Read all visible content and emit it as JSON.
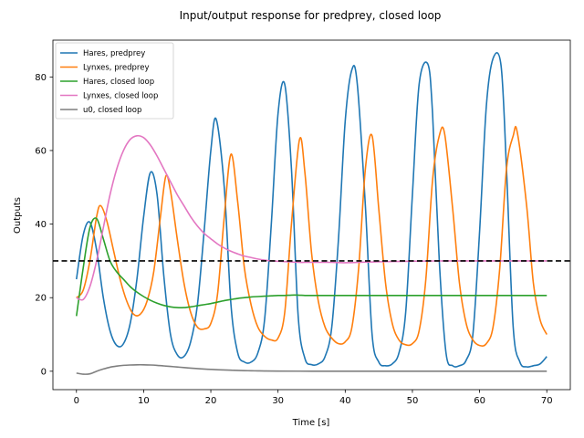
{
  "chart_data": {
    "type": "line",
    "title": "Input/output response for predprey, closed loop",
    "xlabel": "Time [s]",
    "ylabel": "Outputs",
    "xlim": [
      -3.5,
      73.5
    ],
    "ylim": [
      -5,
      90
    ],
    "xticks": [
      0,
      10,
      20,
      30,
      40,
      50,
      60,
      70
    ],
    "yticks": [
      0,
      20,
      40,
      60,
      80
    ],
    "grid": false,
    "legend_position": "top-left",
    "reference_line": {
      "y": 30,
      "color": "#000000",
      "style": "dashed"
    },
    "series": [
      {
        "name": "Hares, predprey",
        "color": "#1f77b4",
        "x": [
          0,
          1,
          2,
          3,
          4,
          5,
          6,
          7,
          8,
          9,
          10,
          11,
          12,
          13,
          14,
          15,
          16,
          17,
          18,
          19,
          20,
          20.8,
          22,
          23,
          24,
          25,
          26,
          27,
          28,
          29,
          30,
          31,
          32,
          33,
          34,
          35,
          36,
          37,
          38,
          39,
          40,
          41,
          41.8,
          43,
          44,
          45,
          46,
          47,
          48,
          49,
          50,
          51,
          52.3,
          53,
          54,
          55,
          56,
          57,
          58,
          59,
          60,
          61,
          62,
          63.2,
          64,
          65,
          66,
          67,
          68,
          69,
          70
        ],
        "y": [
          25,
          37,
          40.5,
          33,
          20,
          11,
          7,
          7.5,
          13,
          25,
          42,
          54,
          48,
          26,
          10,
          4.5,
          4,
          8,
          18,
          38,
          60,
          68.5,
          50,
          18,
          5,
          2.5,
          2.5,
          5,
          14,
          40,
          70,
          78,
          55,
          15,
          3.5,
          1.8,
          2,
          4,
          12,
          36,
          68,
          82,
          78,
          45,
          10,
          2.5,
          1.5,
          2,
          5,
          16,
          48,
          78,
          83.5,
          70,
          30,
          5,
          1.5,
          1.5,
          3,
          10,
          38,
          72,
          85,
          83,
          55,
          12,
          2.5,
          1.2,
          1.5,
          2,
          4
        ]
      },
      {
        "name": "Lynxes, predprey",
        "color": "#ff7f0e",
        "x": [
          0,
          1,
          2,
          3,
          3.6,
          4.5,
          5.5,
          6.5,
          7.5,
          8.5,
          9.5,
          10.5,
          11.5,
          12.5,
          13.3,
          14,
          15,
          16,
          17,
          18,
          19,
          20,
          21,
          22,
          23,
          24,
          25,
          26,
          27,
          28,
          29,
          30,
          31,
          32,
          33.2,
          34,
          35,
          36,
          37,
          38,
          39,
          40,
          41,
          42,
          43,
          44,
          45,
          46,
          47,
          48,
          49,
          50,
          51,
          52,
          53,
          54,
          54.8,
          56,
          57,
          58,
          59,
          60,
          61,
          62,
          63,
          64,
          65,
          65.6,
          67,
          68,
          69,
          70
        ],
        "y": [
          20,
          22,
          30,
          42,
          45,
          41,
          33,
          25,
          19,
          15.5,
          15.5,
          19,
          27,
          42,
          53,
          49,
          36,
          24,
          16,
          12,
          11.5,
          13,
          21,
          42,
          59,
          46,
          28,
          18,
          12,
          9.5,
          8.5,
          9,
          16,
          40,
          63,
          54,
          32,
          19,
          12,
          9,
          7.5,
          8,
          12,
          28,
          55,
          64,
          44,
          24,
          13,
          8.5,
          7.2,
          7.5,
          11,
          25,
          52,
          64,
          64.5,
          44,
          24,
          13,
          8.5,
          7,
          7.5,
          12,
          28,
          55,
          64,
          65,
          45,
          24,
          14,
          10
        ]
      },
      {
        "name": "Hares, closed loop",
        "color": "#2ca02c",
        "x": [
          0,
          1,
          2,
          3,
          4,
          5,
          6,
          7,
          8,
          9,
          10,
          11,
          12,
          13,
          14,
          15,
          16,
          17,
          18,
          19,
          20,
          21,
          22,
          23,
          24,
          25,
          26,
          27,
          28,
          29,
          30,
          31,
          32,
          33,
          34,
          35,
          40,
          45,
          50,
          55,
          60,
          65,
          70
        ],
        "y": [
          15,
          28,
          39,
          41.5,
          36,
          30,
          27,
          25,
          23,
          21.5,
          20.3,
          19.3,
          18.5,
          17.9,
          17.5,
          17.3,
          17.3,
          17.5,
          17.8,
          18.1,
          18.4,
          18.8,
          19.2,
          19.5,
          19.8,
          20,
          20.2,
          20.3,
          20.4,
          20.5,
          20.6,
          20.6,
          20.7,
          20.7,
          20.6,
          20.6,
          20.6,
          20.6,
          20.6,
          20.6,
          20.6,
          20.6,
          20.6
        ]
      },
      {
        "name": "Lynxes, closed loop",
        "color": "#e377c2",
        "x": [
          0,
          1,
          2,
          3,
          4,
          5,
          6,
          7,
          8,
          9,
          10,
          11,
          12,
          13,
          14,
          15,
          16,
          17,
          18,
          19,
          20,
          21,
          22,
          23,
          24,
          25,
          26,
          27,
          28,
          29,
          30,
          31,
          32,
          33,
          34,
          35,
          36,
          38,
          40,
          42,
          44,
          46,
          50,
          55,
          60,
          65,
          70
        ],
        "y": [
          20,
          19.5,
          23,
          30,
          39,
          48,
          55,
          60,
          63,
          64,
          63.5,
          61.5,
          58.5,
          55,
          51.5,
          48,
          45,
          42,
          39.5,
          37.5,
          36,
          34.6,
          33.5,
          32.6,
          31.9,
          31.3,
          30.9,
          30.5,
          30.2,
          30,
          29.9,
          29.8,
          29.7,
          29.6,
          29.6,
          29.6,
          29.6,
          29.6,
          29.5,
          29.6,
          29.7,
          29.8,
          29.9,
          30,
          30,
          30,
          30
        ]
      },
      {
        "name": "u0, closed loop",
        "color": "#7f7f7f",
        "x": [
          0,
          1,
          2,
          3,
          4,
          5,
          6,
          7,
          8,
          9,
          10,
          11,
          12,
          13,
          14,
          15,
          16,
          17,
          18,
          19,
          20,
          21,
          22,
          23,
          24,
          25,
          26,
          27,
          28,
          30,
          35,
          40,
          45,
          50,
          55,
          60,
          65,
          70
        ],
        "y": [
          -0.5,
          -0.8,
          -0.7,
          0,
          0.6,
          1.1,
          1.4,
          1.6,
          1.7,
          1.75,
          1.75,
          1.7,
          1.6,
          1.45,
          1.3,
          1.15,
          1.0,
          0.85,
          0.72,
          0.6,
          0.5,
          0.42,
          0.35,
          0.28,
          0.22,
          0.17,
          0.13,
          0.1,
          0.08,
          0.05,
          0.01,
          0,
          0,
          0,
          0,
          0,
          0,
          0
        ]
      }
    ]
  }
}
